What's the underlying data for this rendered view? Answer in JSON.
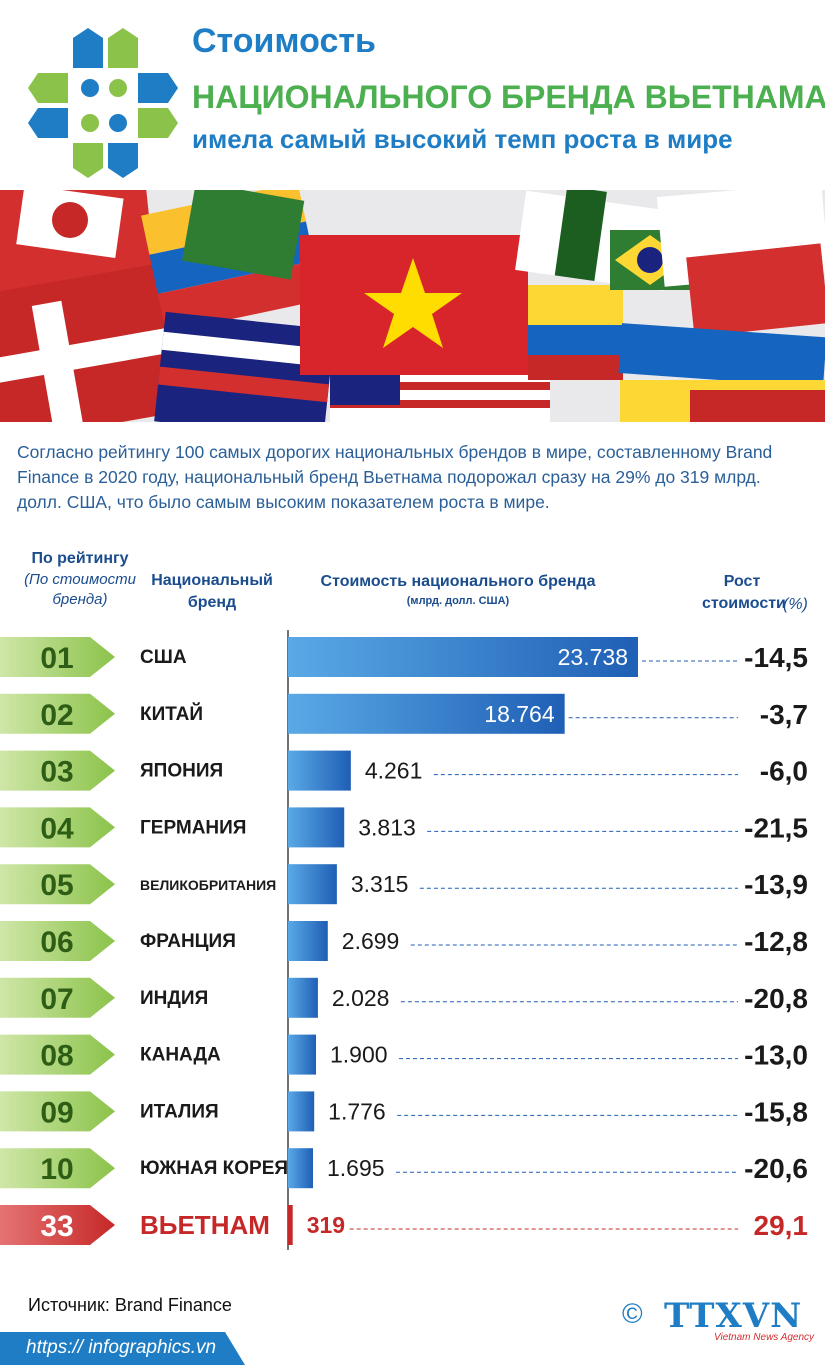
{
  "header": {
    "title_line1": "Стоимость",
    "title_line2": "НАЦИОНАЛЬНОГО БРЕНДА ВЬЕТНАМА",
    "title_line3": "имела самый высокий темп роста в мире"
  },
  "intro_text": "Согласно рейтингу 100 самых дорогих национальных брендов в мире, составленному Brand Finance в 2020 году, национальный бренд Вьетнама подорожал сразу на 29% до 319 млрд. долл. США, что было самым высоким показателем роста в мире.",
  "columns": {
    "rank_title": "По рейтингу",
    "rank_subtitle": "(По стоимости бренда)",
    "brand_title": "Национальный бренд",
    "value_title": "Стоимость национального бренда",
    "value_unit": "(млрд. долл. США)",
    "growth_title": "Рост стоимости",
    "growth_unit": "(%)"
  },
  "colors": {
    "green": "#7cb342",
    "green_light": "#b5d98a",
    "blue": "#1f6fc2",
    "blue_light": "#5aa9e6",
    "red": "#c62828",
    "text_dark": "#1a1a1a"
  },
  "chart_data": {
    "type": "bar",
    "orientation": "horizontal",
    "rows": [
      {
        "rank": "01",
        "country": "США",
        "value": 23738,
        "value_label": "23.738",
        "growth": "-14,5"
      },
      {
        "rank": "02",
        "country": "КИТАЙ",
        "value": 18764,
        "value_label": "18.764",
        "growth": "-3,7"
      },
      {
        "rank": "03",
        "country": "ЯПОНИЯ",
        "value": 4261,
        "value_label": "4.261",
        "growth": "-6,0"
      },
      {
        "rank": "04",
        "country": "ГЕРМАНИЯ",
        "value": 3813,
        "value_label": "3.813",
        "growth": "-21,5"
      },
      {
        "rank": "05",
        "country": "ВЕЛИКОБРИТАНИЯ",
        "value": 3315,
        "value_label": "3.315",
        "growth": "-13,9"
      },
      {
        "rank": "06",
        "country": "ФРАНЦИЯ",
        "value": 2699,
        "value_label": "2.699",
        "growth": "-12,8"
      },
      {
        "rank": "07",
        "country": "ИНДИЯ",
        "value": 2028,
        "value_label": "2.028",
        "growth": "-20,8"
      },
      {
        "rank": "08",
        "country": "КАНАДА",
        "value": 1900,
        "value_label": "1.900",
        "growth": "-13,0"
      },
      {
        "rank": "09",
        "country": "ИТАЛИЯ",
        "value": 1776,
        "value_label": "1.776",
        "growth": "-15,8"
      },
      {
        "rank": "10",
        "country": "ЮЖНАЯ КОРЕЯ",
        "value": 1695,
        "value_label": "1.695",
        "growth": "-20,6"
      },
      {
        "rank": "33",
        "country": "ВЬЕТНАМ",
        "value": 319,
        "value_label": "319",
        "growth": "29,1",
        "highlight": true
      }
    ]
  },
  "source": "Источник: Brand Finance",
  "footer_url": "https:// infographics.vn",
  "logo": {
    "copyright": "©",
    "name": "TTXVN",
    "tagline": "Vietnam News Agency"
  }
}
